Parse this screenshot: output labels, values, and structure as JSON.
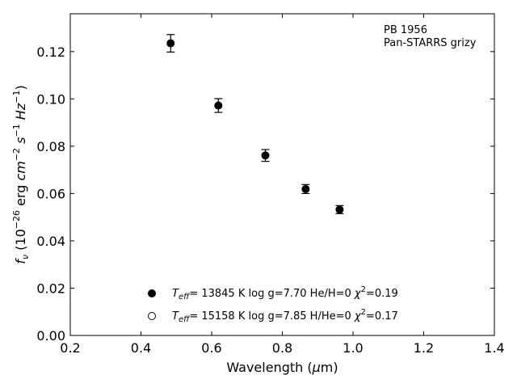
{
  "chart_data": {
    "type": "scatter",
    "title": "",
    "xlabel": "Wavelength (μm)",
    "ylabel": "f_ν (10^-26 erg cm^-2 s^-1 Hz^-1)",
    "xlim": [
      0.2,
      1.4
    ],
    "ylim": [
      0.0,
      0.136
    ],
    "xticks": [
      "0.2",
      "0.4",
      "0.6",
      "0.8",
      "1.0",
      "1.2",
      "1.4"
    ],
    "yticks": [
      "0.00",
      "0.02",
      "0.04",
      "0.06",
      "0.08",
      "0.10",
      "0.12"
    ],
    "grid": false,
    "annotation": {
      "line1": "PB 1956",
      "line2": "Pan-STARRS grizy"
    },
    "series": [
      {
        "marker": "filled-circle",
        "label_teff": "= 13845 K  log g=7.70  He/H=0  ",
        "label_chi": "=0.19",
        "x": [
          0.484,
          0.619,
          0.752,
          0.866,
          0.962
        ],
        "y": [
          0.1235,
          0.0972,
          0.0761,
          0.0619,
          0.0532
        ],
        "yerr": [
          0.0037,
          0.0029,
          0.0025,
          0.0019,
          0.0017
        ]
      },
      {
        "marker": "open-circle",
        "label_teff": "= 15158 K  log g=7.85  H/He=0  ",
        "label_chi": "=0.17",
        "x": [],
        "y": [],
        "yerr": []
      }
    ]
  }
}
